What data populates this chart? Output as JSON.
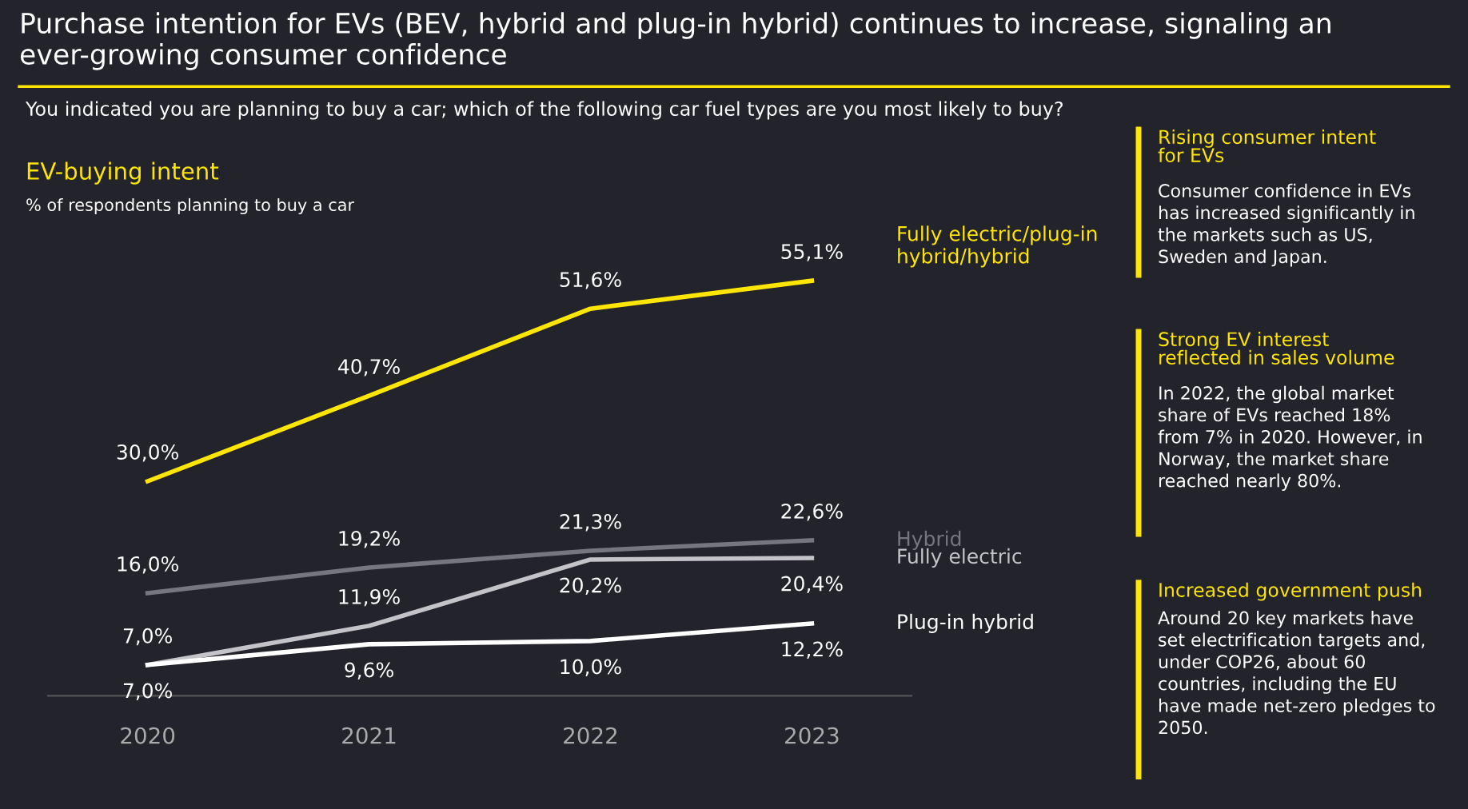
{
  "chart_data": {
    "type": "line",
    "title": "Purchase intention for EVs (BEV, hybrid and plug-in hybrid) continues to increase, signaling an ever-growing consumer confidence",
    "subtitle": "You indicated you are planning to buy a car; which of the following car fuel types are you most likely to buy?",
    "ylabel": "% of respondents planning to buy a car",
    "categories": [
      "2020",
      "2021",
      "2022",
      "2023"
    ],
    "series": [
      {
        "name": "Fully electric/plug-in\nhybrid/hybrid",
        "color": "#ffe600",
        "values": [
          30.0,
          40.7,
          51.6,
          55.1
        ],
        "value_labels": [
          "30,0%",
          "40,7%",
          "51,6%",
          "55,1%"
        ]
      },
      {
        "name": "Hybrid",
        "color": "#76767e",
        "values": [
          16.0,
          19.2,
          21.3,
          22.6
        ],
        "value_labels": [
          "16,0%",
          "19,2%",
          "21,3%",
          "22,6%"
        ]
      },
      {
        "name": "Fully electric",
        "color": "#c4c4c8",
        "values": [
          7.0,
          11.9,
          20.2,
          20.4
        ],
        "value_labels": [
          "7,0%",
          "11,9%",
          "20,2%",
          "20,4%"
        ]
      },
      {
        "name": "Plug-in hybrid",
        "color": "#ffffff",
        "values": [
          7.0,
          9.6,
          10.0,
          12.2
        ],
        "value_labels": [
          "7,0%",
          "9,6%",
          "10,0%",
          "12,2%"
        ]
      }
    ],
    "grid": false,
    "legend": false,
    "marker": "none",
    "line_style": "solid",
    "tick_labels": "x",
    "annotations": [
      "EV-buying intent",
      "Rising consumer intent\nfor EVs",
      "Consumer confidence in EVs\nhas increased significantly in\nthe markets such as US,\nSweden and Japan.",
      "Strong EV interest\nreflected in sales volume",
      "In 2022, the global market\nshare of EVs reached 18%\nfrom 7% in 2020. However, in\nNorway, the market share\nreached nearly 80%.",
      "Increased government push",
      "Around 20 key markets have\nset electrification targets and,\nunder COP26, about 60\ncountries, including the EU\nhave made net-zero pledges to\n2050."
    ]
  }
}
